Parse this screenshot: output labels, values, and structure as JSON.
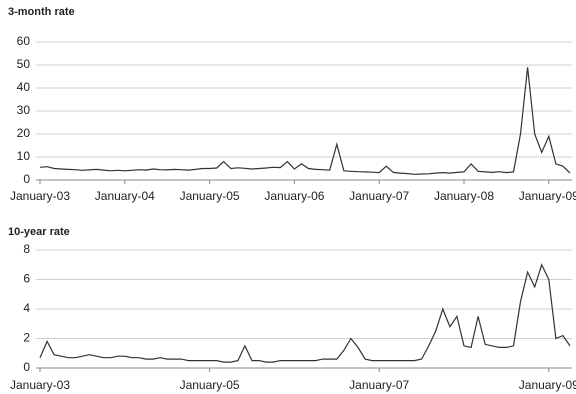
{
  "chart_data": [
    {
      "type": "line",
      "title": "3-month rate",
      "categories": [
        "January-03",
        null,
        null,
        null,
        null,
        null,
        null,
        null,
        null,
        null,
        null,
        null,
        "January-04",
        null,
        null,
        null,
        null,
        null,
        null,
        null,
        null,
        null,
        null,
        null,
        "January-05",
        null,
        null,
        null,
        null,
        null,
        null,
        null,
        null,
        null,
        null,
        null,
        "January-06",
        null,
        null,
        null,
        null,
        null,
        null,
        null,
        null,
        null,
        null,
        null,
        "January-07",
        null,
        null,
        null,
        null,
        null,
        null,
        null,
        null,
        null,
        null,
        null,
        "January-08",
        null,
        null,
        null,
        null,
        null,
        null,
        null,
        null,
        null,
        null,
        null,
        "January-09",
        null,
        null,
        null
      ],
      "series": [
        {
          "name": "3-month rate",
          "color": "#333333",
          "values": [
            5.5,
            5.8,
            5,
            4.8,
            4.6,
            4.5,
            4.2,
            4.4,
            4.6,
            4.3,
            4,
            4.2,
            4,
            4.2,
            4.5,
            4.3,
            4.8,
            4.5,
            4.4,
            4.6,
            4.5,
            4.3,
            4.6,
            5,
            5,
            5.2,
            8,
            5,
            5.3,
            5.1,
            4.8,
            5,
            5.2,
            5.5,
            5.4,
            8,
            4.8,
            7,
            5,
            4.6,
            4.5,
            4.3,
            15.5,
            4,
            3.8,
            3.6,
            3.5,
            3.4,
            3.2,
            6,
            3.3,
            3,
            2.8,
            2.5,
            2.6,
            2.7,
            3,
            3.2,
            3,
            3.3,
            3.5,
            7,
            3.8,
            3.5,
            3.3,
            3.6,
            3.2,
            3.5,
            20,
            49,
            20,
            12,
            19,
            7,
            6,
            3
          ]
        }
      ],
      "ylim": [
        0,
        60
      ],
      "yticks": [
        0,
        10,
        20,
        30,
        40,
        50,
        60
      ],
      "grid": true
    },
    {
      "type": "line",
      "title": "10-year rate",
      "categories": [
        "January-03",
        null,
        null,
        null,
        null,
        null,
        null,
        null,
        null,
        null,
        null,
        null,
        null,
        null,
        null,
        null,
        null,
        null,
        null,
        null,
        null,
        null,
        null,
        null,
        "January-05",
        null,
        null,
        null,
        null,
        null,
        null,
        null,
        null,
        null,
        null,
        null,
        null,
        null,
        null,
        null,
        null,
        null,
        null,
        null,
        null,
        null,
        null,
        null,
        "January-07",
        null,
        null,
        null,
        null,
        null,
        null,
        null,
        null,
        null,
        null,
        null,
        null,
        null,
        null,
        null,
        null,
        null,
        null,
        null,
        null,
        null,
        null,
        null,
        "January-09",
        null,
        null,
        null
      ],
      "series": [
        {
          "name": "10-year rate",
          "color": "#333333",
          "values": [
            0.7,
            1.8,
            0.9,
            0.8,
            0.7,
            0.7,
            0.8,
            0.9,
            0.8,
            0.7,
            0.7,
            0.8,
            0.8,
            0.7,
            0.7,
            0.6,
            0.6,
            0.7,
            0.6,
            0.6,
            0.6,
            0.5,
            0.5,
            0.5,
            0.5,
            0.5,
            0.4,
            0.4,
            0.5,
            1.5,
            0.5,
            0.5,
            0.4,
            0.4,
            0.5,
            0.5,
            0.5,
            0.5,
            0.5,
            0.5,
            0.6,
            0.6,
            0.6,
            1.2,
            2.0,
            1.4,
            0.6,
            0.5,
            0.5,
            0.5,
            0.5,
            0.5,
            0.5,
            0.5,
            0.6,
            1.5,
            2.5,
            4.0,
            2.8,
            3.5,
            1.5,
            1.4,
            3.5,
            1.6,
            1.5,
            1.4,
            1.4,
            1.5,
            4.5,
            6.5,
            5.5,
            7.0,
            6.0,
            2.0,
            2.2,
            1.5
          ]
        }
      ],
      "ylim": [
        0,
        8
      ],
      "yticks": [
        0,
        2,
        4,
        6,
        8
      ],
      "grid": true
    }
  ]
}
